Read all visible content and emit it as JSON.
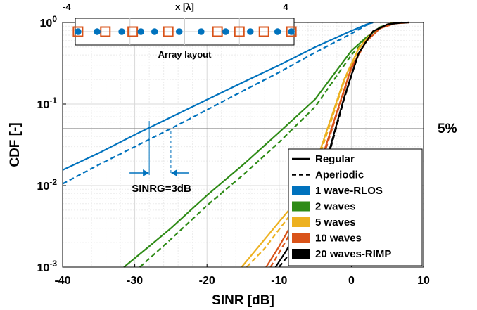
{
  "chart_data": {
    "type": "line",
    "xlabel": "SINR [dB]",
    "ylabel": "CDF [-]",
    "x_scale": "linear",
    "y_scale": "log",
    "xlim": [
      -40,
      10
    ],
    "ylim": [
      0.001,
      1
    ],
    "x_ticks": [
      "-40",
      "-30",
      "-20",
      "-10",
      "0",
      "10"
    ],
    "y_tick_bases": [
      "10",
      "10",
      "10",
      "10"
    ],
    "y_tick_exps": [
      "-3",
      "-2",
      "-1",
      "0"
    ],
    "grid": true,
    "series": [
      {
        "name": "1 wave-RLOS",
        "color": "#0072BD",
        "style": "solid",
        "x": [
          -40,
          -35,
          -30,
          -25,
          -20,
          -15,
          -10,
          -5,
          0,
          2,
          3
        ],
        "y": [
          0.0155,
          0.025,
          0.042,
          0.069,
          0.113,
          0.185,
          0.3,
          0.5,
          0.79,
          0.94,
          1.0
        ]
      },
      {
        "name": "1 wave-RLOS",
        "color": "#0072BD",
        "style": "dashed",
        "x": [
          -40,
          -35,
          -30,
          -25,
          -20,
          -15,
          -10,
          -5,
          0,
          2,
          3
        ],
        "y": [
          0.0105,
          0.018,
          0.03,
          0.05,
          0.085,
          0.145,
          0.245,
          0.43,
          0.73,
          0.92,
          1.0
        ]
      },
      {
        "name": "2 waves",
        "color": "#2E8B16",
        "style": "solid",
        "x": [
          -31.5,
          -28,
          -25,
          -20,
          -15,
          -10,
          -5,
          0,
          2,
          4,
          5.5,
          7
        ],
        "y": [
          0.001,
          0.0018,
          0.003,
          0.0076,
          0.018,
          0.045,
          0.115,
          0.45,
          0.65,
          0.88,
          0.97,
          1.0
        ]
      },
      {
        "name": "2 waves",
        "color": "#2E8B16",
        "style": "dashed",
        "x": [
          -29.3,
          -25,
          -20,
          -15,
          -10,
          -5,
          0,
          2,
          4,
          5.5,
          7
        ],
        "y": [
          0.001,
          0.0022,
          0.0057,
          0.0135,
          0.034,
          0.093,
          0.4,
          0.63,
          0.87,
          0.97,
          1.0
        ]
      },
      {
        "name": "5 waves",
        "color": "#EDB120",
        "style": "solid",
        "x": [
          -15.2,
          -12,
          -9,
          -7,
          -5,
          -3,
          -1,
          1,
          3,
          5,
          7
        ],
        "y": [
          0.001,
          0.0022,
          0.0046,
          0.0074,
          0.018,
          0.06,
          0.2,
          0.48,
          0.78,
          0.95,
          1.0
        ]
      },
      {
        "name": "5 waves",
        "color": "#EDB120",
        "style": "dashed",
        "x": [
          -14.5,
          -12,
          -9,
          -7,
          -5,
          -3,
          -1,
          1,
          3,
          5,
          7
        ],
        "y": [
          0.001,
          0.0017,
          0.0038,
          0.0064,
          0.016,
          0.055,
          0.19,
          0.47,
          0.77,
          0.95,
          1.0
        ]
      },
      {
        "name": "10 waves",
        "color": "#D95319",
        "style": "solid",
        "x": [
          -11.8,
          -10,
          -8,
          -6,
          -4,
          -2,
          0,
          2,
          4,
          6,
          8
        ],
        "y": [
          0.001,
          0.0018,
          0.0037,
          0.0078,
          0.023,
          0.08,
          0.28,
          0.58,
          0.85,
          0.97,
          1.0
        ]
      },
      {
        "name": "10 waves",
        "color": "#D95319",
        "style": "dashed",
        "x": [
          -11.2,
          -10,
          -8,
          -6,
          -4,
          -2,
          0,
          2,
          4,
          6,
          8
        ],
        "y": [
          0.001,
          0.0015,
          0.0031,
          0.0069,
          0.021,
          0.076,
          0.27,
          0.58,
          0.85,
          0.97,
          1.0
        ]
      },
      {
        "name": "20 waves-RIMP",
        "color": "#000000",
        "style": "solid",
        "x": [
          -10.5,
          -9,
          -7,
          -5,
          -3,
          -1,
          1,
          3,
          5,
          7,
          8
        ],
        "y": [
          0.001,
          0.0016,
          0.0034,
          0.0085,
          0.028,
          0.12,
          0.42,
          0.78,
          0.95,
          0.995,
          1.0
        ]
      },
      {
        "name": "20 waves-RIMP",
        "color": "#000000",
        "style": "dashed",
        "x": [
          -10,
          -9,
          -7,
          -5,
          -3,
          -1,
          1,
          3,
          5,
          7,
          8
        ],
        "y": [
          0.001,
          0.0013,
          0.0029,
          0.0076,
          0.026,
          0.115,
          0.42,
          0.78,
          0.95,
          0.995,
          1.0
        ]
      }
    ],
    "reference_line": {
      "y": 0.05,
      "label": "5%",
      "color": "#8c8c8c"
    },
    "annotation": {
      "text": "SINRG=3dB",
      "color": "#0072BD",
      "x_regular": -28,
      "x_aperiodic": -25
    },
    "legend": {
      "placement": "bottom-right",
      "entries": [
        {
          "label": "Regular",
          "kind": "solid",
          "color": "#000000"
        },
        {
          "label": "Aperiodic",
          "kind": "dashed",
          "color": "#000000"
        },
        {
          "label": "1 wave-RLOS",
          "kind": "patch",
          "color": "#0072BD"
        },
        {
          "label": "2 waves",
          "kind": "patch",
          "color": "#2E8B16"
        },
        {
          "label": "5 waves",
          "kind": "patch",
          "color": "#EDB120"
        },
        {
          "label": "10 waves",
          "kind": "patch",
          "color": "#D95319"
        },
        {
          "label": "20 waves-RIMP",
          "kind": "patch",
          "color": "#000000"
        }
      ]
    },
    "inset": {
      "title": "Array layout",
      "axis_label": "x [λ]",
      "x_min_label": "-4",
      "x_max_label": "4",
      "xlim": [
        -4,
        4
      ],
      "circles": [
        -3.9,
        -3.2,
        -2.3,
        -1.6,
        -1.1,
        -0.2,
        0.6,
        1.5,
        2.4,
        3.4,
        3.9
      ],
      "squares": [
        -3.9,
        -2.9,
        -1.9,
        -0.6,
        1.2,
        2.0,
        2.9,
        3.9
      ],
      "circle_color": "#0072BD",
      "square_color": "#D95319"
    }
  }
}
